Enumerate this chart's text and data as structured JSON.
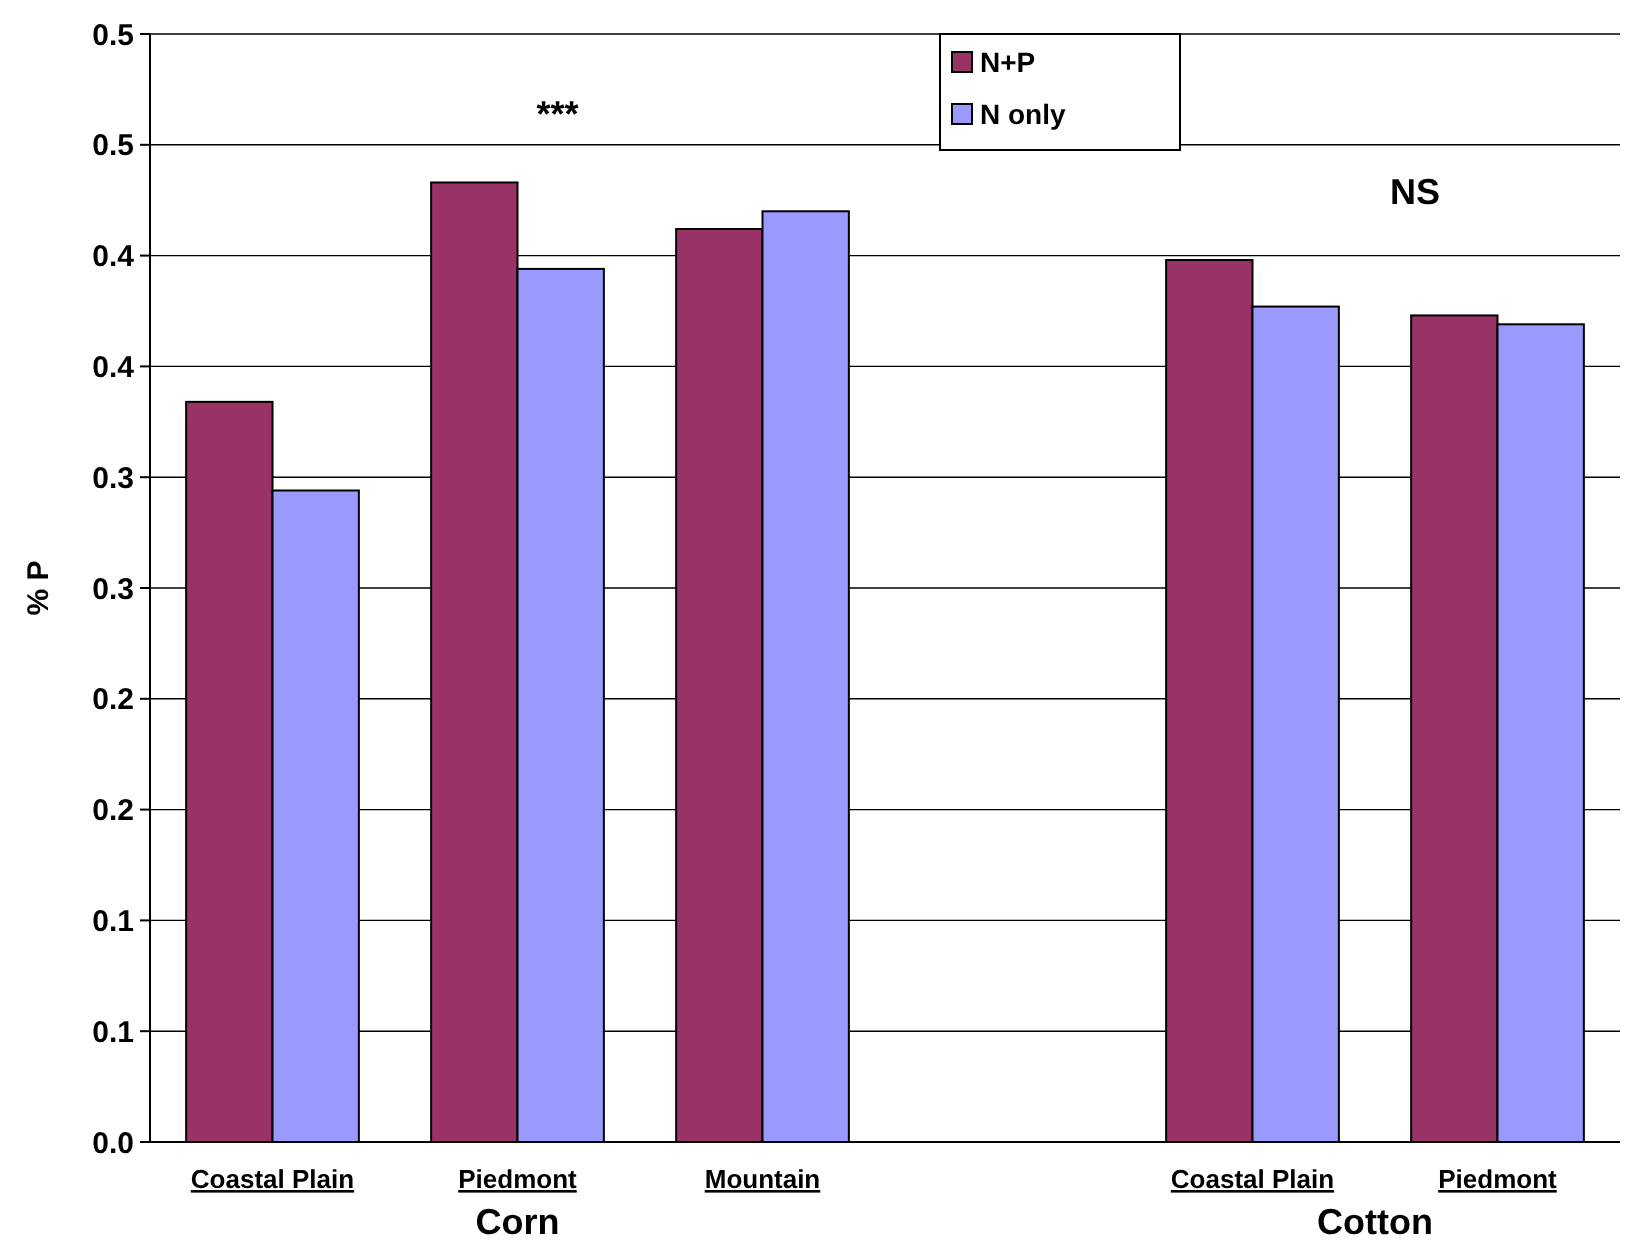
{
  "chart_data": {
    "type": "bar",
    "ylabel": "% P",
    "categories": [
      "Coastal Plain",
      "Piedmont",
      "Mountain",
      null,
      "Coastal Plain",
      "Piedmont"
    ],
    "series": [
      {
        "name": "N+P",
        "color": "#993366",
        "values": [
          0.334,
          0.433,
          0.412,
          null,
          0.398,
          0.373
        ]
      },
      {
        "name": "N only",
        "color": "#9999ff",
        "values": [
          0.294,
          0.394,
          0.42,
          null,
          0.377,
          0.369
        ]
      }
    ],
    "ylim": [
      0,
      0.5
    ],
    "yticks": [
      {
        "value": 0,
        "label": "0.0"
      },
      {
        "value": 0.05,
        "label": "0.1"
      },
      {
        "value": 0.1,
        "label": "0.1"
      },
      {
        "value": 0.15,
        "label": "0.2"
      },
      {
        "value": 0.2,
        "label": "0.2"
      },
      {
        "value": 0.25,
        "label": "0.3"
      },
      {
        "value": 0.3,
        "label": "0.3"
      },
      {
        "value": 0.35,
        "label": "0.4"
      },
      {
        "value": 0.4,
        "label": "0.4"
      },
      {
        "value": 0.45,
        "label": "0.5"
      },
      {
        "value": 0.5,
        "label": "0.5"
      }
    ],
    "grid": "y",
    "legend": "top",
    "annotations": [
      "***",
      "NS",
      "Corn",
      "Cotton"
    ]
  }
}
